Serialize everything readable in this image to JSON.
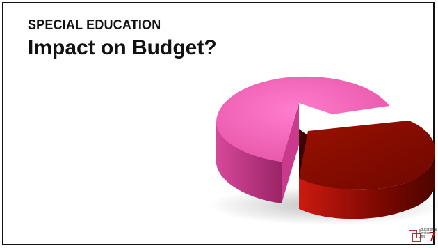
{
  "slide": {
    "kicker": "SPECIAL EDUCATION",
    "title": "Impact on Budget?"
  },
  "logo": {
    "line1": "Educational",
    "line2": "Service",
    "line3": "Unit",
    "number": "7"
  },
  "colors": {
    "pink": "#ef5fb0",
    "pink_side": "#b9317e",
    "red": "#7f0b00",
    "red_side": "#5a0600"
  }
}
